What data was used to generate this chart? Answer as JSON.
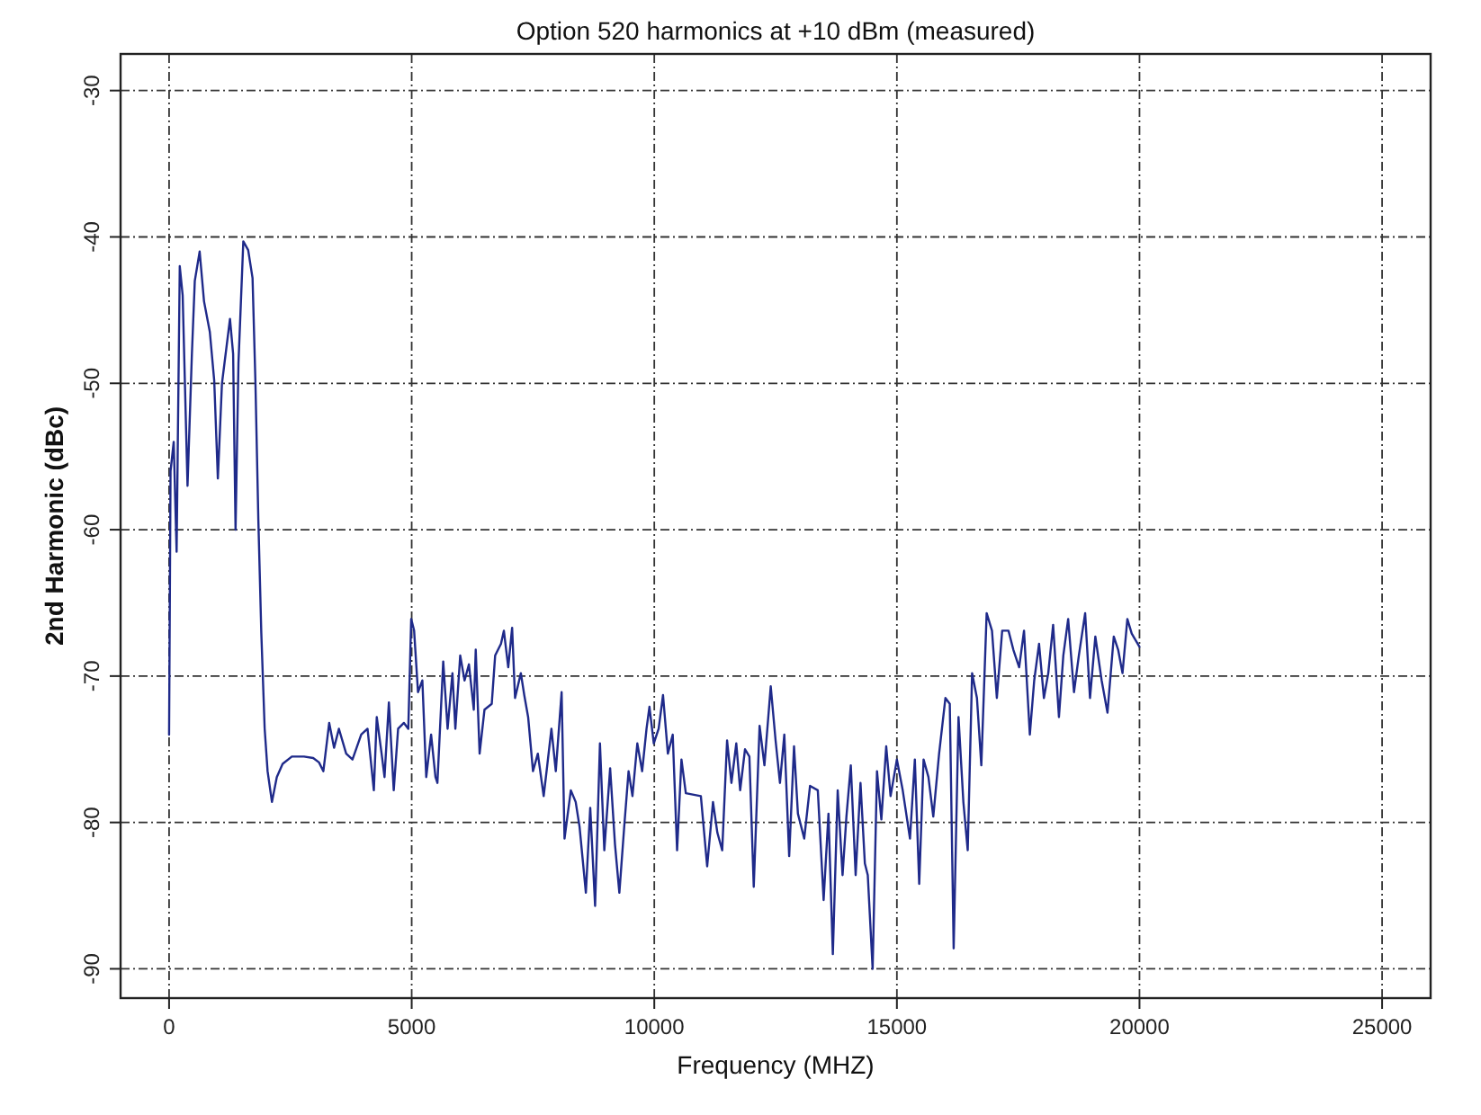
{
  "chart_data": {
    "type": "line",
    "title": "Option 520 harmonics at +10 dBm (measured)",
    "xlabel": "Frequency (MHZ)",
    "ylabel": "2nd Harmonic (dBc)",
    "xlim": [
      -1000,
      26000
    ],
    "xticks": [
      0,
      5000,
      10000,
      15000,
      20000,
      25000
    ],
    "ylim": [
      -92,
      -27.5
    ],
    "yticks": [
      -30,
      -40,
      -50,
      -60,
      -70,
      -80,
      -90
    ],
    "grid": true,
    "line_style": "solid",
    "series": [
      {
        "color": "#1f2a8a",
        "x": [
          0,
          30,
          95,
          155,
          220,
          280,
          380,
          470,
          530,
          630,
          720,
          840,
          930,
          1005,
          1090,
          1255,
          1320,
          1370,
          1430,
          1530,
          1630,
          1720,
          1780,
          1840,
          1900,
          1970,
          2030,
          2120,
          2220,
          2340,
          2530,
          2780,
          2970,
          3090,
          3180,
          3300,
          3400,
          3500,
          3650,
          3780,
          3960,
          4090,
          4220,
          4280,
          4380,
          4440,
          4530,
          4630,
          4720,
          4840,
          4930,
          4990,
          5050,
          5130,
          5220,
          5300,
          5400,
          5490,
          5530,
          5650,
          5740,
          5840,
          5900,
          6000,
          6090,
          6180,
          6280,
          6320,
          6400,
          6500,
          6650,
          6720,
          6840,
          6900,
          6990,
          7070,
          7130,
          7250,
          7320,
          7400,
          7500,
          7600,
          7720,
          7780,
          7880,
          7970,
          8090,
          8150,
          8280,
          8380,
          8460,
          8590,
          8680,
          8780,
          8880,
          8970,
          9090,
          9190,
          9280,
          9380,
          9470,
          9550,
          9650,
          9750,
          9840,
          9900,
          9990,
          10090,
          10180,
          10280,
          10380,
          10470,
          10560,
          10650,
          10960,
          11090,
          11210,
          11300,
          11400,
          11500,
          11590,
          11690,
          11770,
          11870,
          11960,
          12050,
          12170,
          12270,
          12400,
          12500,
          12590,
          12680,
          12780,
          12880,
          12960,
          13090,
          13210,
          13370,
          13490,
          13590,
          13680,
          13780,
          13880,
          13960,
          14050,
          14150,
          14250,
          14340,
          14400,
          14500,
          14590,
          14680,
          14780,
          14870,
          15000,
          15120,
          15270,
          15370,
          15460,
          15550,
          15650,
          15750,
          15870,
          16000,
          16090,
          16170,
          16270,
          16370,
          16460,
          16550,
          16650,
          16740,
          16850,
          16960,
          17060,
          17170,
          17300,
          17400,
          17520,
          17620,
          17740,
          17830,
          17930,
          18030,
          18120,
          18220,
          18340,
          18430,
          18530,
          18650,
          18750,
          18880,
          18980,
          19090,
          19220,
          19340,
          19470,
          19560,
          19650,
          19750,
          19840,
          20000
        ],
        "values": [
          -74,
          -56,
          -54,
          -61.5,
          -42,
          -44,
          -57,
          -48,
          -43,
          -41,
          -44.4,
          -46.5,
          -49.8,
          -56.5,
          -50,
          -45.6,
          -48,
          -60,
          -48.6,
          -40.3,
          -40.9,
          -42.8,
          -50,
          -59.4,
          -67,
          -73.6,
          -76.5,
          -78.6,
          -76.9,
          -76,
          -75.5,
          -75.5,
          -75.6,
          -75.9,
          -76.5,
          -73.2,
          -74.9,
          -73.6,
          -75.3,
          -75.7,
          -74,
          -73.6,
          -77.8,
          -72.8,
          -75.3,
          -76.9,
          -71.8,
          -77.8,
          -73.6,
          -73.2,
          -73.6,
          -66.1,
          -66.9,
          -71.1,
          -70.3,
          -76.9,
          -74,
          -76.9,
          -77.3,
          -69,
          -73.6,
          -69.8,
          -73.6,
          -68.6,
          -70.3,
          -69.2,
          -72.3,
          -68.2,
          -75.3,
          -72.3,
          -71.9,
          -68.6,
          -67.8,
          -66.9,
          -69.4,
          -66.7,
          -71.5,
          -69.8,
          -71.3,
          -72.8,
          -76.5,
          -75.3,
          -78.2,
          -76.5,
          -73.6,
          -76.5,
          -71.1,
          -81.1,
          -77.8,
          -78.6,
          -80.3,
          -84.8,
          -79,
          -85.7,
          -74.6,
          -81.9,
          -76.3,
          -81.5,
          -84.8,
          -80.3,
          -76.5,
          -78.2,
          -74.6,
          -76.5,
          -73.6,
          -72.1,
          -74.6,
          -73.6,
          -71.3,
          -75.3,
          -74,
          -81.9,
          -75.7,
          -78,
          -78.2,
          -83,
          -78.6,
          -80.7,
          -81.9,
          -74.4,
          -77.3,
          -74.6,
          -77.8,
          -75,
          -75.5,
          -84.4,
          -73.4,
          -76.1,
          -70.7,
          -74.4,
          -77.3,
          -74,
          -82.3,
          -74.8,
          -79.4,
          -81.1,
          -77.5,
          -77.8,
          -85.3,
          -79.4,
          -89,
          -77.8,
          -83.6,
          -79.6,
          -76.1,
          -83.6,
          -77.3,
          -82.8,
          -83.6,
          -90,
          -76.5,
          -79.8,
          -74.8,
          -78.2,
          -75.7,
          -77.8,
          -81.1,
          -75.7,
          -84.2,
          -75.7,
          -76.9,
          -79.6,
          -75.3,
          -71.5,
          -71.9,
          -88.6,
          -72.8,
          -78.6,
          -81.9,
          -69.8,
          -71.5,
          -76.1,
          -65.7,
          -66.9,
          -71.5,
          -66.9,
          -66.9,
          -68.2,
          -69.4,
          -66.9,
          -74,
          -70.3,
          -67.8,
          -71.5,
          -69.8,
          -66.5,
          -72.8,
          -68.6,
          -66.1,
          -71.1,
          -68.6,
          -65.7,
          -71.5,
          -67.3,
          -70.3,
          -72.5,
          -67.3,
          -68.2,
          -69.8,
          -66.1,
          -67.1,
          -68
        ]
      }
    ]
  }
}
